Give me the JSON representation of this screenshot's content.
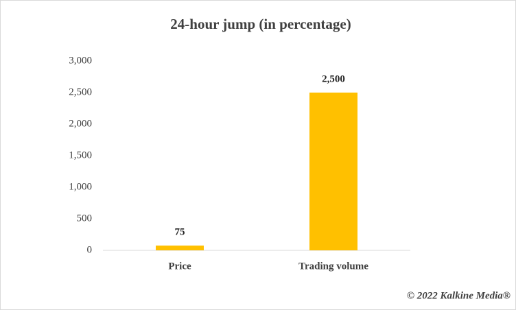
{
  "chart_data": {
    "type": "bar",
    "title": "24-hour jump (in percentage)",
    "categories": [
      "Price",
      "Trading volume"
    ],
    "values": [
      75,
      2500
    ],
    "value_labels": [
      "75",
      "2,500"
    ],
    "color": "#ffc000",
    "ylim": [
      0,
      3000
    ],
    "yticks": [
      0,
      500,
      {
        "value": 1000,
        "label": "1,000"
      },
      {
        "value": 1500,
        "label": "1,500"
      },
      {
        "value": 2000,
        "label": "2,000"
      },
      {
        "value": 2500,
        "label": "2,500"
      },
      {
        "value": 3000,
        "label": "3,000"
      }
    ],
    "grid": false,
    "annotation": "© 2022 Kalkine Media®"
  }
}
